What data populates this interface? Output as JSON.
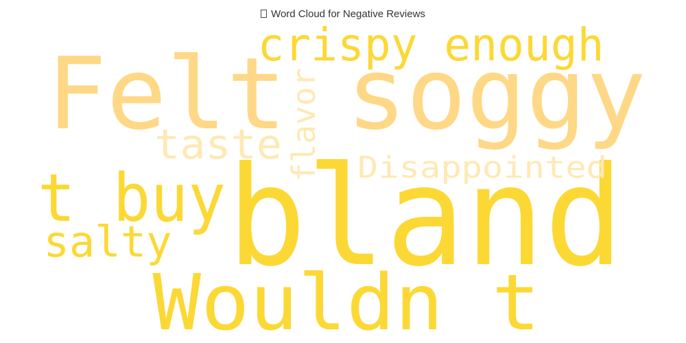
{
  "chart_data": {
    "type": "wordcloud",
    "title": "Word Cloud for Negative Reviews",
    "words": [
      {
        "text": "bland",
        "weight": 100,
        "color": "#FCD835"
      },
      {
        "text": "Felt soggy",
        "weight": 85,
        "color": "#FED886"
      },
      {
        "text": "Wouldn t",
        "weight": 70,
        "color": "#FCD835"
      },
      {
        "text": "t buy",
        "weight": 60,
        "color": "#FCD835"
      },
      {
        "text": "crispy enough",
        "weight": 48,
        "color": "#FCD835"
      },
      {
        "text": "salty",
        "weight": 42,
        "color": "#FCD835"
      },
      {
        "text": "taste",
        "weight": 40,
        "color": "#FFE9B3"
      },
      {
        "text": "Disappointed",
        "weight": 36,
        "color": "#FFE9B3"
      },
      {
        "text": "flavor",
        "weight": 34,
        "color": "#FFE9B3"
      }
    ]
  }
}
